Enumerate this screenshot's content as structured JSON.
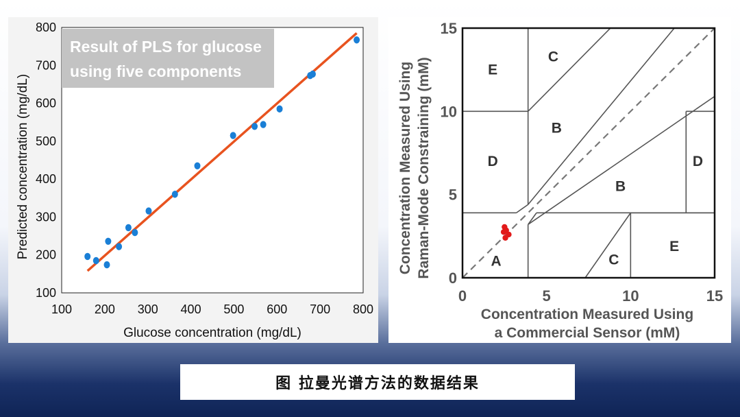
{
  "caption": "图 拉曼光谱方法的数据结果",
  "chart_data": [
    {
      "type": "scatter",
      "title": "Result of PLS for glucose using five components",
      "title_lines": [
        "Result of PLS for glucose",
        "using five components"
      ],
      "xlabel": "Glucose concentration (mg/dL)",
      "ylabel": "Predicted concentration (mg/dL)",
      "xlim": [
        100,
        800
      ],
      "ylim": [
        100,
        800
      ],
      "xticks": [
        100,
        200,
        300,
        400,
        500,
        600,
        700,
        800
      ],
      "yticks": [
        100,
        200,
        300,
        400,
        500,
        600,
        700,
        800
      ],
      "grid": false,
      "point_color": "#1a7fd6",
      "line_color": "#e8531f",
      "fit_line": {
        "x": [
          160,
          785
        ],
        "y": [
          158,
          785
        ]
      },
      "points": [
        {
          "x": 160,
          "y": 196
        },
        {
          "x": 180,
          "y": 185
        },
        {
          "x": 205,
          "y": 174
        },
        {
          "x": 208,
          "y": 236
        },
        {
          "x": 233,
          "y": 222
        },
        {
          "x": 255,
          "y": 272
        },
        {
          "x": 270,
          "y": 259
        },
        {
          "x": 302,
          "y": 316
        },
        {
          "x": 363,
          "y": 360
        },
        {
          "x": 415,
          "y": 435
        },
        {
          "x": 498,
          "y": 515
        },
        {
          "x": 548,
          "y": 539
        },
        {
          "x": 568,
          "y": 544
        },
        {
          "x": 606,
          "y": 585
        },
        {
          "x": 677,
          "y": 673
        },
        {
          "x": 683,
          "y": 677
        },
        {
          "x": 785,
          "y": 767
        }
      ]
    },
    {
      "type": "scatter",
      "xlabel_lines": [
        "Concentration Measured Using",
        "a Commercial Sensor (mM)"
      ],
      "ylabel_lines": [
        "Concentration Measured Using",
        "Raman-Mode Constraining (mM)"
      ],
      "xlim": [
        0,
        15
      ],
      "ylim": [
        0,
        15
      ],
      "xticks": [
        0,
        5,
        10,
        15
      ],
      "yticks": [
        0,
        5,
        10,
        15
      ],
      "grid": false,
      "point_color": "#e21a1a",
      "points": [
        {
          "x": 2.5,
          "y": 3.05
        },
        {
          "x": 2.6,
          "y": 2.85
        },
        {
          "x": 2.45,
          "y": 2.75
        },
        {
          "x": 2.75,
          "y": 2.6
        },
        {
          "x": 2.55,
          "y": 2.4
        }
      ],
      "zones": [
        {
          "label": "A",
          "x": 2.0,
          "y": 1.0
        },
        {
          "label": "B",
          "x": 5.6,
          "y": 9.0
        },
        {
          "label": "B",
          "x": 9.4,
          "y": 5.5
        },
        {
          "label": "C",
          "x": 5.4,
          "y": 13.3
        },
        {
          "label": "C",
          "x": 9.0,
          "y": 1.1
        },
        {
          "label": "D",
          "x": 1.8,
          "y": 7.0
        },
        {
          "label": "D",
          "x": 14.0,
          "y": 7.0
        },
        {
          "label": "E",
          "x": 1.8,
          "y": 12.5
        },
        {
          "label": "E",
          "x": 12.6,
          "y": 1.9
        }
      ],
      "boundaries": [
        {
          "x": [
            0,
            3.2
          ],
          "y": [
            3.9,
            3.9
          ]
        },
        {
          "x": [
            3.2,
            3.9
          ],
          "y": [
            3.9,
            4.4
          ]
        },
        {
          "x": [
            3.9,
            3.9
          ],
          "y": [
            4.4,
            15
          ]
        },
        {
          "x": [
            3.9,
            3.9
          ],
          "y": [
            0,
            3.2
          ]
        },
        {
          "x": [
            3.9,
            4.4
          ],
          "y": [
            3.2,
            3.9
          ]
        },
        {
          "x": [
            4.4,
            15
          ],
          "y": [
            3.9,
            3.9
          ]
        },
        {
          "x": [
            0,
            3.9
          ],
          "y": [
            10,
            10
          ]
        },
        {
          "x": [
            3.9,
            8.8
          ],
          "y": [
            10,
            15
          ]
        },
        {
          "x": [
            3.9,
            12.6
          ],
          "y": [
            4.4,
            15
          ]
        },
        {
          "x": [
            3.9,
            15
          ],
          "y": [
            3.2,
            10.9
          ]
        },
        {
          "x": [
            13.3,
            13.3
          ],
          "y": [
            3.9,
            10
          ]
        },
        {
          "x": [
            13.3,
            15
          ],
          "y": [
            10,
            10
          ]
        },
        {
          "x": [
            7.3,
            10
          ],
          "y": [
            0,
            3.9
          ]
        },
        {
          "x": [
            10,
            10
          ],
          "y": [
            0,
            3.9
          ]
        },
        {
          "x": [
            10,
            15
          ],
          "y": [
            3.9,
            3.9
          ]
        }
      ],
      "identity_line": {
        "x": [
          0,
          15
        ],
        "y": [
          0,
          15
        ],
        "style": "dashed"
      }
    }
  ]
}
